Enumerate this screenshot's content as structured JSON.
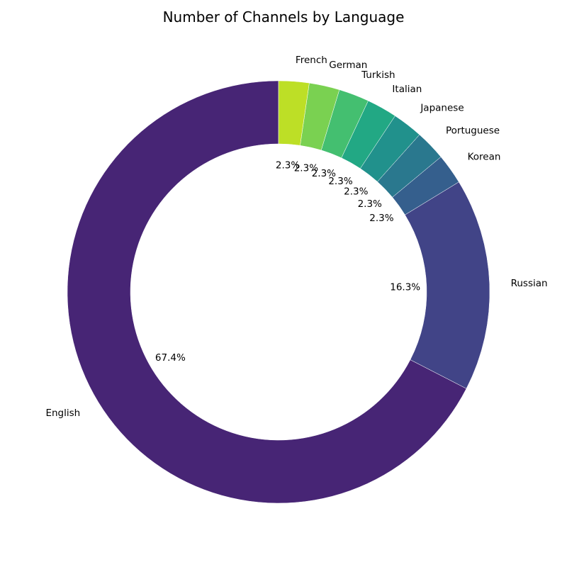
{
  "chart_data": {
    "type": "pie",
    "variant": "donut",
    "title": "Number of Channels by Language",
    "categories": [
      "English",
      "Russian",
      "Korean",
      "Portuguese",
      "Japanese",
      "Italian",
      "Turkish",
      "German",
      "French"
    ],
    "values": [
      29,
      7,
      1,
      1,
      1,
      1,
      1,
      1,
      1
    ],
    "percent_labels": [
      "67.4%",
      "16.3%",
      "2.3%",
      "2.3%",
      "2.3%",
      "2.3%",
      "2.3%",
      "2.3%",
      "2.3%"
    ],
    "colors": [
      "#472575",
      "#414487",
      "#355f8d",
      "#2a788e",
      "#21918c",
      "#22a884",
      "#44bf70",
      "#7ad151",
      "#bddf26"
    ],
    "start_angle_deg": 90,
    "direction": "counterclockwise",
    "legend": "none"
  }
}
